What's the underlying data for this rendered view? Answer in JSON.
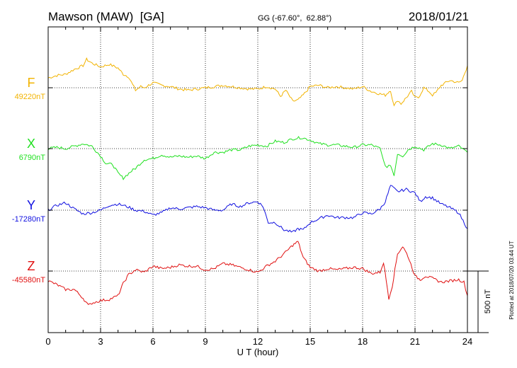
{
  "header": {
    "station": "Mawson (MAW)  [GA]",
    "coords": "GG (-67.60°,  62.88°)",
    "date": "2018/01/21"
  },
  "footer_note": "Plotted at 2018/07/20 03:44 UT",
  "chart_data": {
    "type": "line",
    "xlabel": "U T (hour)",
    "xlim": [
      0,
      24
    ],
    "xticks": [
      0,
      3,
      6,
      9,
      12,
      15,
      18,
      21,
      24
    ],
    "grid": true,
    "scale_bar": {
      "value": 500,
      "label": "500 nT"
    },
    "colors": {
      "F": "#f2b300",
      "X": "#1fe01f",
      "Y": "#1010e0",
      "Z": "#e01010"
    },
    "series": [
      {
        "name": "F",
        "baseline_label": "49220nT",
        "baseline_nT": 49220,
        "hours": [
          0,
          0.5,
          1,
          1.5,
          2,
          2.2,
          2.5,
          3,
          3.5,
          4,
          4.3,
          4.6,
          5,
          5.3,
          5.5,
          6,
          6.5,
          7,
          7.5,
          8,
          8.5,
          9,
          9.5,
          10,
          10.5,
          11,
          11.5,
          12,
          12.5,
          13,
          13.3,
          13.6,
          14,
          14.3,
          14.6,
          15,
          15.5,
          16,
          16.5,
          17,
          17.5,
          18,
          18.5,
          19,
          19.3,
          19.6,
          19.8,
          20,
          20.2,
          20.5,
          20.8,
          21,
          21.2,
          21.5,
          21.8,
          22,
          22.2,
          22.5,
          23,
          23.5,
          23.7,
          24
        ],
        "values": [
          80,
          100,
          110,
          150,
          180,
          230,
          200,
          170,
          190,
          160,
          110,
          90,
          -20,
          10,
          0,
          40,
          20,
          10,
          -10,
          -20,
          -10,
          0,
          10,
          20,
          10,
          0,
          -10,
          -10,
          10,
          -10,
          -70,
          -20,
          -110,
          -100,
          -60,
          10,
          20,
          0,
          10,
          0,
          -10,
          10,
          -30,
          -50,
          -60,
          -20,
          -150,
          -100,
          -130,
          -80,
          -30,
          -80,
          -80,
          0,
          -30,
          -60,
          -40,
          20,
          60,
          40,
          60,
          180
        ]
      },
      {
        "name": "X",
        "baseline_label": "6790nT",
        "baseline_nT": 6790,
        "hours": [
          0,
          0.5,
          1,
          1.5,
          2,
          2.5,
          3,
          3.3,
          3.7,
          4,
          4.3,
          4.7,
          5,
          5.5,
          6,
          6.5,
          7,
          7.5,
          8,
          8.5,
          9,
          9.5,
          10,
          10.5,
          11,
          11.5,
          12,
          12.5,
          13,
          13.5,
          14,
          14.5,
          15,
          15.5,
          16,
          16.5,
          17,
          17.5,
          18,
          18.5,
          19,
          19.2,
          19.4,
          19.6,
          19.8,
          20,
          20.3,
          20.6,
          21,
          21.5,
          22,
          22.5,
          23,
          23.5,
          24
        ],
        "values": [
          0,
          10,
          0,
          20,
          40,
          20,
          -60,
          -120,
          -130,
          -200,
          -240,
          -190,
          -160,
          -90,
          -80,
          -50,
          -70,
          -60,
          -70,
          -60,
          -80,
          -30,
          -30,
          -10,
          -10,
          20,
          30,
          20,
          60,
          50,
          80,
          90,
          70,
          40,
          30,
          30,
          20,
          10,
          30,
          30,
          0,
          -100,
          -160,
          -130,
          -220,
          -40,
          -60,
          -10,
          20,
          -10,
          40,
          30,
          0,
          20,
          -30
        ]
      },
      {
        "name": "Y",
        "baseline_label": "-17280nT",
        "baseline_nT": -17280,
        "hours": [
          0,
          0.5,
          1,
          1.5,
          2,
          2.5,
          3,
          3.5,
          4,
          4.5,
          5,
          5.5,
          6,
          6.5,
          7,
          7.5,
          8,
          8.5,
          9,
          9.5,
          10,
          10.5,
          11,
          11.5,
          12,
          12.3,
          12.6,
          13,
          13.5,
          14,
          14.3,
          14.6,
          15,
          15.5,
          16,
          16.5,
          17,
          17.5,
          18,
          18.5,
          19,
          19.3,
          19.6,
          20,
          20.5,
          21,
          21.3,
          21.6,
          22,
          22.5,
          23,
          23.5,
          24
        ],
        "values": [
          0,
          40,
          60,
          10,
          -30,
          -20,
          0,
          40,
          50,
          30,
          0,
          -10,
          -40,
          -20,
          20,
          10,
          20,
          30,
          20,
          0,
          0,
          50,
          30,
          60,
          70,
          30,
          -100,
          -100,
          -160,
          -180,
          -150,
          -160,
          -100,
          -70,
          -40,
          -60,
          -60,
          -60,
          -20,
          -30,
          10,
          70,
          200,
          150,
          170,
          140,
          70,
          110,
          100,
          50,
          20,
          -20,
          -150
        ]
      },
      {
        "name": "Z",
        "baseline_label": "-45580nT",
        "baseline_nT": -45580,
        "hours": [
          0,
          0.5,
          1,
          1.5,
          2,
          2.3,
          2.5,
          3,
          3.5,
          4,
          4.3,
          4.6,
          5,
          5.5,
          6,
          6.5,
          7,
          7.5,
          8,
          8.5,
          9,
          9.5,
          10,
          10.5,
          11,
          11.5,
          12,
          12.5,
          13,
          13.5,
          14,
          14.3,
          14.6,
          15,
          15.5,
          16,
          16.5,
          17,
          17.5,
          18,
          18.5,
          19,
          19.2,
          19.5,
          19.7,
          20,
          20.3,
          20.6,
          21,
          21.3,
          21.6,
          22,
          22.5,
          23,
          23.5,
          23.8,
          24
        ],
        "values": [
          -80,
          -110,
          -150,
          -150,
          -220,
          -280,
          -260,
          -240,
          -230,
          -200,
          -100,
          -30,
          10,
          -10,
          40,
          20,
          30,
          50,
          40,
          40,
          10,
          20,
          60,
          50,
          30,
          10,
          -10,
          40,
          80,
          140,
          210,
          240,
          110,
          30,
          0,
          20,
          10,
          20,
          30,
          20,
          -20,
          -10,
          70,
          -220,
          -120,
          140,
          200,
          120,
          -40,
          -70,
          -40,
          -60,
          -90,
          -80,
          -70,
          -90,
          -200
        ]
      }
    ]
  }
}
